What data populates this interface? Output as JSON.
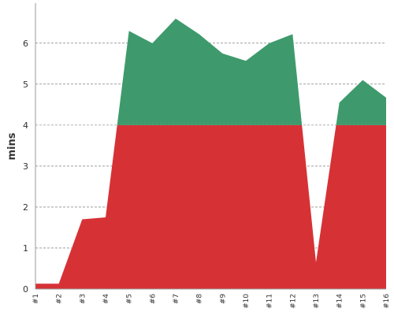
{
  "chart_data": {
    "type": "area",
    "ylabel": "mins",
    "ylim": [
      0,
      6.9
    ],
    "yticks": [
      0,
      1,
      2,
      3,
      4,
      5,
      6
    ],
    "grid": true,
    "categories": [
      "#1",
      "#2",
      "#3",
      "#4",
      "#5",
      "#6",
      "#7",
      "#8",
      "#9",
      "#10",
      "#11",
      "#12",
      "#13",
      "#14",
      "#15",
      "#16"
    ],
    "values": [
      0.13,
      0.13,
      1.7,
      1.75,
      6.3,
      6.0,
      6.6,
      6.22,
      5.75,
      5.57,
      6.0,
      6.22,
      0.65,
      4.55,
      5.1,
      4.67
    ],
    "threshold": 4,
    "colors": {
      "above": "#3e9a6c",
      "below": "#d63236"
    }
  }
}
